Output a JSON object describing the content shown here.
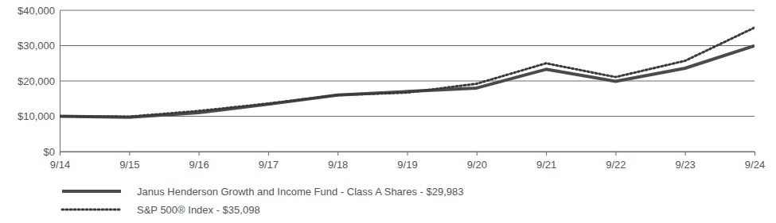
{
  "chart_data": {
    "type": "line",
    "categories": [
      "9/14",
      "9/15",
      "9/16",
      "9/17",
      "9/18",
      "9/19",
      "9/20",
      "9/21",
      "9/22",
      "9/23",
      "9/24"
    ],
    "ylim": [
      0,
      40000
    ],
    "yticks": [
      {
        "value": 0,
        "label": "$0"
      },
      {
        "value": 10000,
        "label": "$10,000"
      },
      {
        "value": 20000,
        "label": "$20,000"
      },
      {
        "value": 30000,
        "label": "$30,000"
      },
      {
        "value": 40000,
        "label": "$40,000"
      }
    ],
    "grid": true,
    "legend": "bottom",
    "series": [
      {
        "name": "Janus Henderson Growth and Income Fund - Class A Shares - $29,983",
        "color": "#4a4a52",
        "line_style": "solid",
        "values": [
          10000,
          9700,
          11000,
          13400,
          16000,
          17000,
          18000,
          23300,
          19900,
          23600,
          29983
        ]
      },
      {
        "name": "S&P 500® Index - $35,098",
        "color": "#3a3a3a",
        "line_style": "dotted",
        "values": [
          10000,
          9900,
          11500,
          13600,
          16000,
          16700,
          19200,
          25000,
          21100,
          25700,
          35098
        ]
      }
    ]
  }
}
